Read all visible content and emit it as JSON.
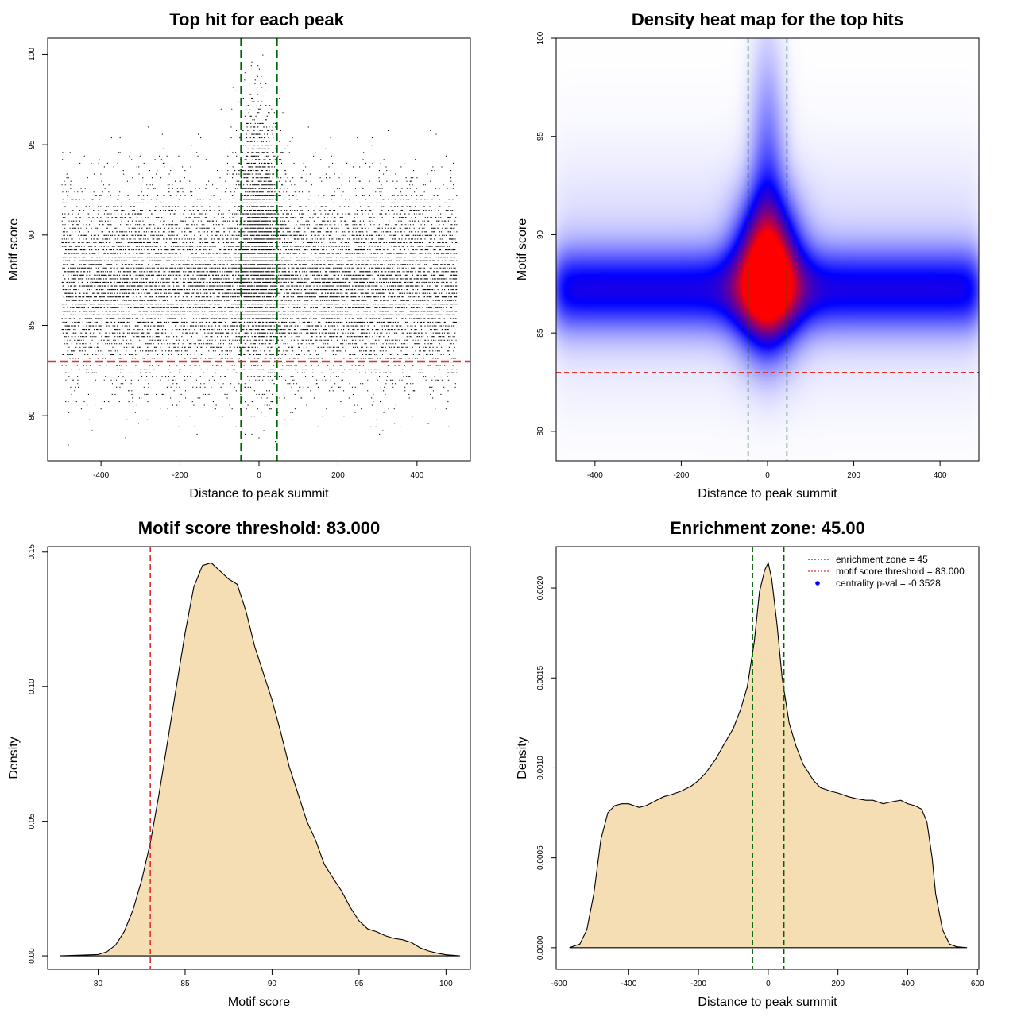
{
  "colors": {
    "threshold_line": "#e03030",
    "zone_line": "#006400",
    "density_fill": "#f5deb3",
    "heat_low": "#ffffff",
    "heat_mid": "#0000ff",
    "heat_high": "#ff0000"
  },
  "chart_data": [
    {
      "type": "scatter",
      "title": "Top hit for each peak",
      "xlabel": "Distance to peak summit",
      "ylabel": "Motif score",
      "xlim": [
        -535,
        535
      ],
      "ylim": [
        77.5,
        100.9
      ],
      "xticks": [
        -400,
        -200,
        0,
        200,
        400
      ],
      "yticks": [
        80,
        85,
        90,
        95,
        100
      ],
      "hlines": [
        83
      ],
      "vlines": [
        -45,
        45
      ],
      "point_model": {
        "n_points": 14000,
        "x_range": [
          -500,
          500
        ],
        "background_score_mean": 87.3,
        "central_score_mean": 90.0,
        "score_sd": 2.6,
        "score_min": 78.4,
        "score_max": 100
      }
    },
    {
      "type": "heatmap",
      "title": "Density heat map for the top hits",
      "xlabel": "Distance to peak summit",
      "ylabel": "Motif score",
      "xlim": [
        -490,
        490
      ],
      "ylim": [
        78.5,
        100
      ],
      "xticks": [
        -400,
        -200,
        0,
        200,
        400
      ],
      "yticks": [
        80,
        85,
        90,
        95,
        100
      ],
      "hlines": [
        83
      ],
      "vlines": [
        -45,
        45
      ],
      "density_peak": {
        "x": 0,
        "score": 88.0
      },
      "background_band": {
        "score_center": 87.2,
        "score_sd": 1.4
      }
    },
    {
      "type": "area",
      "title": "Motif score threshold: 83.000",
      "xlabel": "Motif score",
      "ylabel": "Density",
      "xlim": [
        77.1,
        101.4
      ],
      "ylim": [
        -0.005,
        0.152
      ],
      "xticks": [
        80,
        85,
        90,
        95,
        100
      ],
      "yticks": [
        0.0,
        0.05,
        0.1,
        0.15
      ],
      "ytick_labels": [
        "0.00",
        "0.05",
        "0.10",
        "0.15"
      ],
      "vlines": [
        83
      ],
      "x": [
        77.8,
        80,
        80.5,
        81,
        81.5,
        82,
        82.5,
        83,
        83.5,
        84,
        84.5,
        85,
        85.5,
        86,
        86.5,
        87,
        87.5,
        88,
        88.5,
        89,
        89.5,
        90,
        90.5,
        91,
        91.5,
        92,
        92.5,
        93,
        93.5,
        94,
        94.5,
        95,
        95.5,
        96,
        96.5,
        97,
        97.5,
        98,
        98.5,
        99,
        99.5,
        100,
        100.8
      ],
      "y": [
        0,
        0.0005,
        0.0015,
        0.004,
        0.009,
        0.017,
        0.028,
        0.042,
        0.06,
        0.08,
        0.1,
        0.12,
        0.137,
        0.145,
        0.146,
        0.143,
        0.14,
        0.138,
        0.128,
        0.115,
        0.105,
        0.095,
        0.083,
        0.07,
        0.06,
        0.05,
        0.043,
        0.034,
        0.029,
        0.024,
        0.018,
        0.013,
        0.01,
        0.009,
        0.0075,
        0.0065,
        0.006,
        0.005,
        0.003,
        0.0018,
        0.001,
        0.0004,
        0
      ]
    },
    {
      "type": "area",
      "title": "Enrichment zone: 45.00",
      "xlabel": "Distance to peak summit",
      "ylabel": "Density",
      "xlim": [
        -608,
        604
      ],
      "ylim": [
        -0.00012,
        0.00223
      ],
      "xticks": [
        -600,
        -400,
        -200,
        0,
        200,
        400,
        600
      ],
      "yticks": [
        0.0,
        0.0005,
        0.001,
        0.0015,
        0.002
      ],
      "ytick_labels": [
        "0.0000",
        "0.0005",
        "0.0010",
        "0.0015",
        "0.0020"
      ],
      "vlines": [
        -45,
        45
      ],
      "x": [
        -570,
        -540,
        -520,
        -500,
        -480,
        -460,
        -440,
        -420,
        -400,
        -370,
        -350,
        -320,
        -300,
        -280,
        -250,
        -220,
        -200,
        -180,
        -150,
        -130,
        -100,
        -80,
        -60,
        -40,
        -25,
        -10,
        0,
        10,
        25,
        40,
        60,
        80,
        100,
        130,
        150,
        180,
        200,
        230,
        250,
        280,
        300,
        330,
        350,
        380,
        400,
        420,
        440,
        455,
        470,
        480,
        500,
        520,
        540,
        570
      ],
      "y": [
        0,
        2e-05,
        0.0001,
        0.0003,
        0.0006,
        0.00075,
        0.00079,
        0.0008,
        0.0008,
        0.00078,
        0.00079,
        0.00082,
        0.00084,
        0.00085,
        0.00087,
        0.0009,
        0.00093,
        0.00097,
        0.00105,
        0.00112,
        0.00122,
        0.00132,
        0.00145,
        0.0017,
        0.00198,
        0.0021,
        0.00214,
        0.00205,
        0.0018,
        0.0015,
        0.00125,
        0.00112,
        0.00102,
        0.00093,
        0.00089,
        0.00087,
        0.00086,
        0.00084,
        0.00083,
        0.00082,
        0.00082,
        0.0008,
        0.00081,
        0.00082,
        0.0008,
        0.00079,
        0.00077,
        0.0007,
        0.0005,
        0.0003,
        0.0001,
        2e-05,
        5e-06,
        0
      ],
      "legend": {
        "position": "top-right",
        "entries": [
          {
            "label": "enrichment zone = 45",
            "symbol": "dotted-line",
            "color": "#006400"
          },
          {
            "label": "motif score threshold = 83.000",
            "symbol": "dotted-line",
            "color": "#e03030"
          },
          {
            "label": "centrality p-val = -0.3528",
            "symbol": "dot",
            "color": "#0000ff"
          }
        ]
      }
    }
  ]
}
